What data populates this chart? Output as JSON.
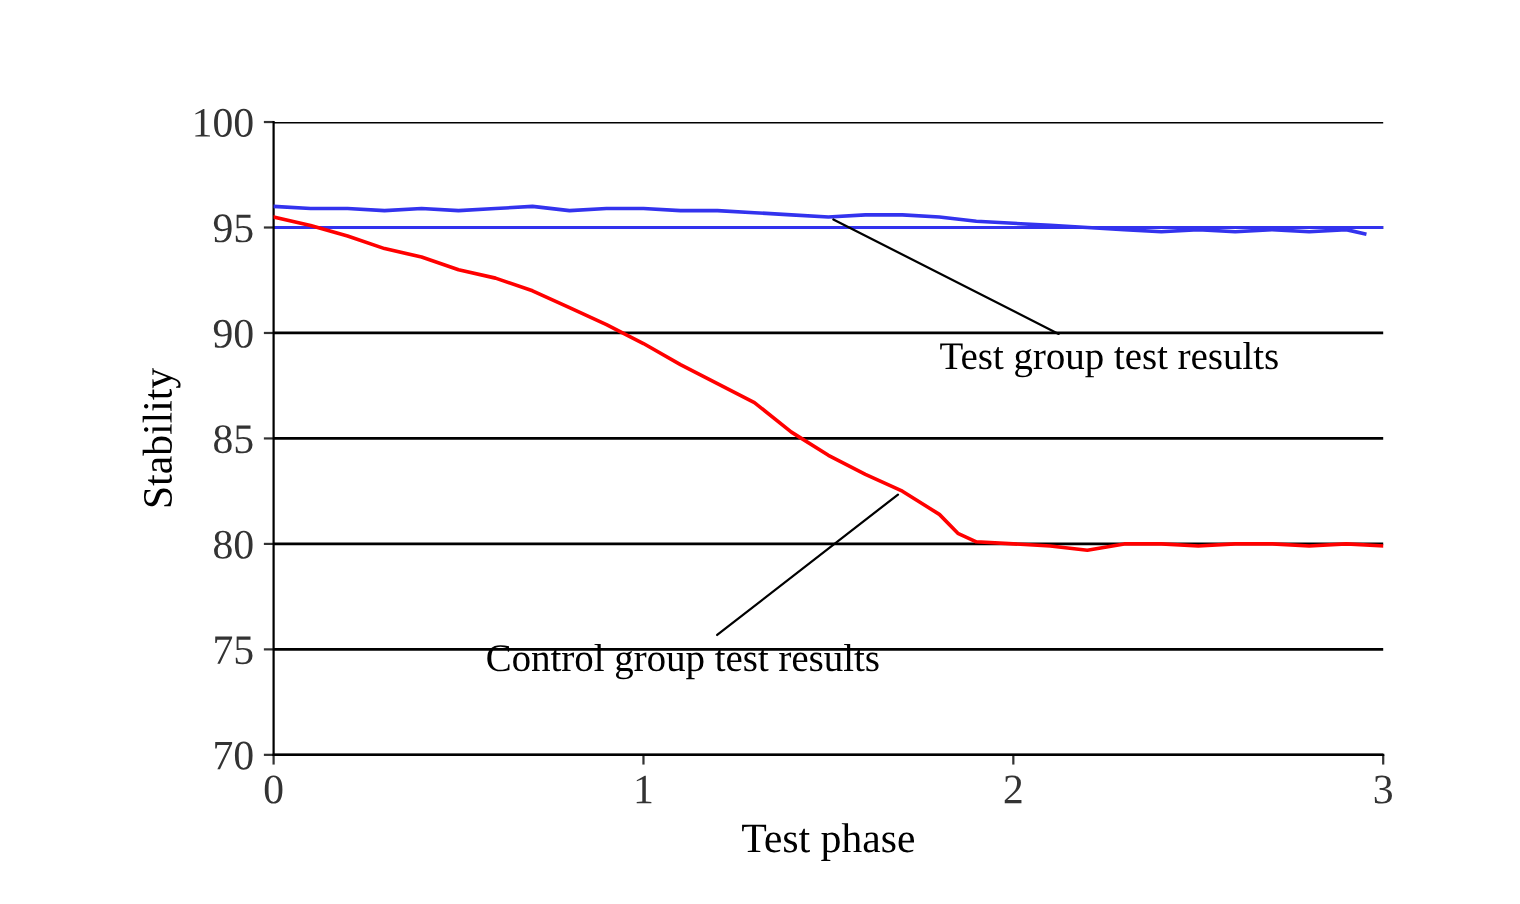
{
  "chart_data": {
    "type": "line",
    "xlabel": "Test phase",
    "ylabel": "Stability",
    "xlim": [
      0,
      3
    ],
    "ylim": [
      70,
      100
    ],
    "xticks": [
      0,
      1,
      2,
      3
    ],
    "yticks": [
      70,
      75,
      80,
      85,
      90,
      95,
      100
    ],
    "grid": "y",
    "ref_lines": [
      {
        "axis": "y",
        "value": 95,
        "color": "#3333ee"
      }
    ],
    "series": [
      {
        "name": "Test group test results",
        "color": "#3333ee",
        "x": [
          0,
          0.1,
          0.2,
          0.3,
          0.4,
          0.5,
          0.6,
          0.7,
          0.8,
          0.9,
          1.0,
          1.1,
          1.2,
          1.3,
          1.4,
          1.5,
          1.6,
          1.7,
          1.8,
          1.9,
          2.0,
          2.1,
          2.2,
          2.3,
          2.4,
          2.5,
          2.6,
          2.7,
          2.8,
          2.9,
          2.95
        ],
        "values": [
          96,
          95.9,
          95.9,
          95.8,
          95.9,
          95.8,
          95.9,
          96,
          95.8,
          95.9,
          95.9,
          95.8,
          95.8,
          95.7,
          95.6,
          95.5,
          95.6,
          95.6,
          95.5,
          95.3,
          95.2,
          95.1,
          95,
          94.9,
          94.8,
          94.9,
          94.8,
          94.9,
          94.8,
          94.9,
          94.7
        ]
      },
      {
        "name": "Control group test results",
        "color": "#ff0000",
        "x": [
          0,
          0.1,
          0.2,
          0.3,
          0.4,
          0.5,
          0.6,
          0.7,
          0.8,
          0.9,
          1.0,
          1.1,
          1.2,
          1.3,
          1.4,
          1.5,
          1.6,
          1.7,
          1.8,
          1.85,
          1.9,
          2.0,
          2.1,
          2.2,
          2.3,
          2.4,
          2.5,
          2.6,
          2.7,
          2.8,
          2.9,
          3.0
        ],
        "values": [
          95.5,
          95.1,
          94.6,
          94,
          93.6,
          93,
          92.6,
          92,
          91.2,
          90.4,
          89.5,
          88.5,
          87.6,
          86.7,
          85.3,
          84.2,
          83.3,
          82.5,
          81.4,
          80.5,
          80.1,
          80,
          79.9,
          79.7,
          80,
          80,
          79.9,
          80,
          80,
          79.9,
          80,
          79.9
        ]
      }
    ]
  }
}
